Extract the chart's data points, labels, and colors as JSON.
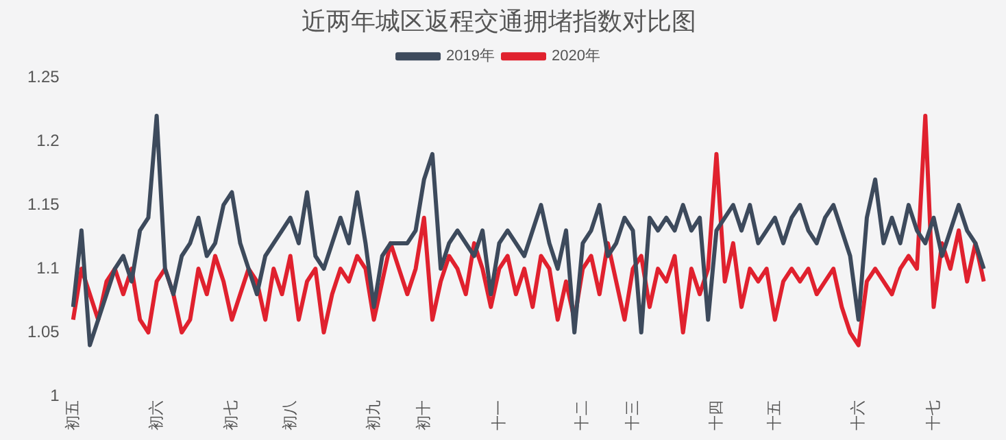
{
  "chart_data": {
    "type": "line",
    "title": "近两年城区返程交通拥堵指数对比图",
    "legend": "top",
    "grid": false,
    "marker": "none",
    "line_style": "solid",
    "categories": [
      "初五",
      null,
      null,
      null,
      null,
      null,
      null,
      null,
      null,
      null,
      "初六",
      null,
      null,
      null,
      null,
      null,
      null,
      null,
      null,
      "初七",
      null,
      null,
      null,
      null,
      null,
      null,
      "初八",
      null,
      null,
      null,
      null,
      null,
      null,
      null,
      null,
      null,
      "初九",
      null,
      null,
      null,
      null,
      null,
      "初十",
      null,
      null,
      null,
      null,
      null,
      null,
      null,
      null,
      "十一",
      null,
      null,
      null,
      null,
      null,
      null,
      null,
      null,
      null,
      "十二",
      null,
      null,
      null,
      null,
      null,
      "十三",
      null,
      null,
      null,
      null,
      null,
      null,
      null,
      null,
      null,
      "十四",
      null,
      null,
      null,
      null,
      null,
      null,
      "十五",
      null,
      null,
      null,
      null,
      null,
      null,
      null,
      null,
      null,
      "十六",
      null,
      null,
      null,
      null,
      null,
      null,
      null,
      null,
      "十七",
      null,
      null,
      null,
      null,
      null,
      null
    ],
    "ylim": [
      1,
      1.25
    ],
    "yticks": [
      1,
      1.05,
      1.1,
      1.15,
      1.2,
      1.25
    ],
    "series": [
      {
        "name": "2019年",
        "color": "#3d4a5c",
        "values": [
          1.07,
          1.13,
          1.04,
          1.06,
          1.08,
          1.1,
          1.11,
          1.09,
          1.13,
          1.14,
          1.22,
          1.1,
          1.08,
          1.11,
          1.12,
          1.14,
          1.11,
          1.12,
          1.15,
          1.16,
          1.12,
          1.1,
          1.08,
          1.11,
          1.12,
          1.13,
          1.14,
          1.12,
          1.16,
          1.11,
          1.1,
          1.12,
          1.14,
          1.12,
          1.16,
          1.12,
          1.07,
          1.11,
          1.12,
          1.12,
          1.12,
          1.13,
          1.17,
          1.19,
          1.1,
          1.12,
          1.13,
          1.12,
          1.11,
          1.13,
          1.08,
          1.12,
          1.13,
          1.12,
          1.11,
          1.13,
          1.15,
          1.12,
          1.1,
          1.13,
          1.05,
          1.12,
          1.13,
          1.15,
          1.11,
          1.12,
          1.14,
          1.13,
          1.05,
          1.14,
          1.13,
          1.14,
          1.13,
          1.15,
          1.13,
          1.14,
          1.06,
          1.13,
          1.14,
          1.15,
          1.13,
          1.15,
          1.12,
          1.13,
          1.14,
          1.12,
          1.14,
          1.15,
          1.13,
          1.12,
          1.14,
          1.15,
          1.13,
          1.11,
          1.06,
          1.14,
          1.17,
          1.12,
          1.14,
          1.12,
          1.15,
          1.13,
          1.12,
          1.14,
          1.11,
          1.13,
          1.15,
          1.13,
          1.12,
          1.1
        ]
      },
      {
        "name": "2020年",
        "color": "#e0212e",
        "values": [
          1.06,
          1.1,
          1.08,
          1.06,
          1.09,
          1.1,
          1.08,
          1.1,
          1.06,
          1.05,
          1.09,
          1.1,
          1.08,
          1.05,
          1.06,
          1.1,
          1.08,
          1.11,
          1.09,
          1.06,
          1.08,
          1.1,
          1.09,
          1.06,
          1.1,
          1.08,
          1.11,
          1.06,
          1.09,
          1.1,
          1.05,
          1.08,
          1.1,
          1.09,
          1.11,
          1.1,
          1.06,
          1.09,
          1.12,
          1.1,
          1.08,
          1.1,
          1.14,
          1.06,
          1.09,
          1.11,
          1.1,
          1.08,
          1.12,
          1.1,
          1.07,
          1.1,
          1.11,
          1.08,
          1.1,
          1.07,
          1.11,
          1.1,
          1.06,
          1.09,
          1.06,
          1.1,
          1.11,
          1.08,
          1.12,
          1.09,
          1.06,
          1.1,
          1.11,
          1.07,
          1.1,
          1.09,
          1.11,
          1.05,
          1.1,
          1.08,
          1.1,
          1.19,
          1.09,
          1.12,
          1.07,
          1.1,
          1.09,
          1.1,
          1.06,
          1.09,
          1.1,
          1.09,
          1.1,
          1.08,
          1.09,
          1.1,
          1.07,
          1.05,
          1.04,
          1.09,
          1.1,
          1.09,
          1.08,
          1.1,
          1.11,
          1.1,
          1.22,
          1.07,
          1.12,
          1.1,
          1.13,
          1.09,
          1.12,
          1.09
        ]
      }
    ]
  }
}
